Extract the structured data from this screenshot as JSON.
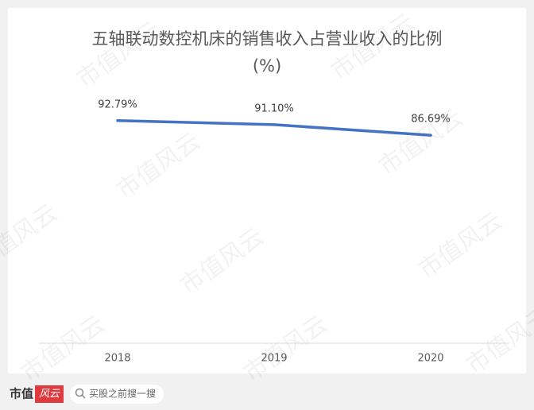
{
  "chart_data": {
    "type": "line",
    "title": "五轴联动数控机床的销售收入占营业收入的比例",
    "subtitle": "(%)",
    "categories": [
      "2018",
      "2019",
      "2020"
    ],
    "series": [
      {
        "color": "#4472c4",
        "values": [
          92.79,
          91.1,
          86.69
        ],
        "value_labels": [
          "92.79%",
          "91.10%",
          "86.69%"
        ]
      }
    ],
    "ylim": [
      0,
      100
    ]
  },
  "watermark": "市值风云",
  "footer": {
    "logo_left": "市值",
    "logo_right": "风云",
    "search": "买股之前搜一搜"
  }
}
